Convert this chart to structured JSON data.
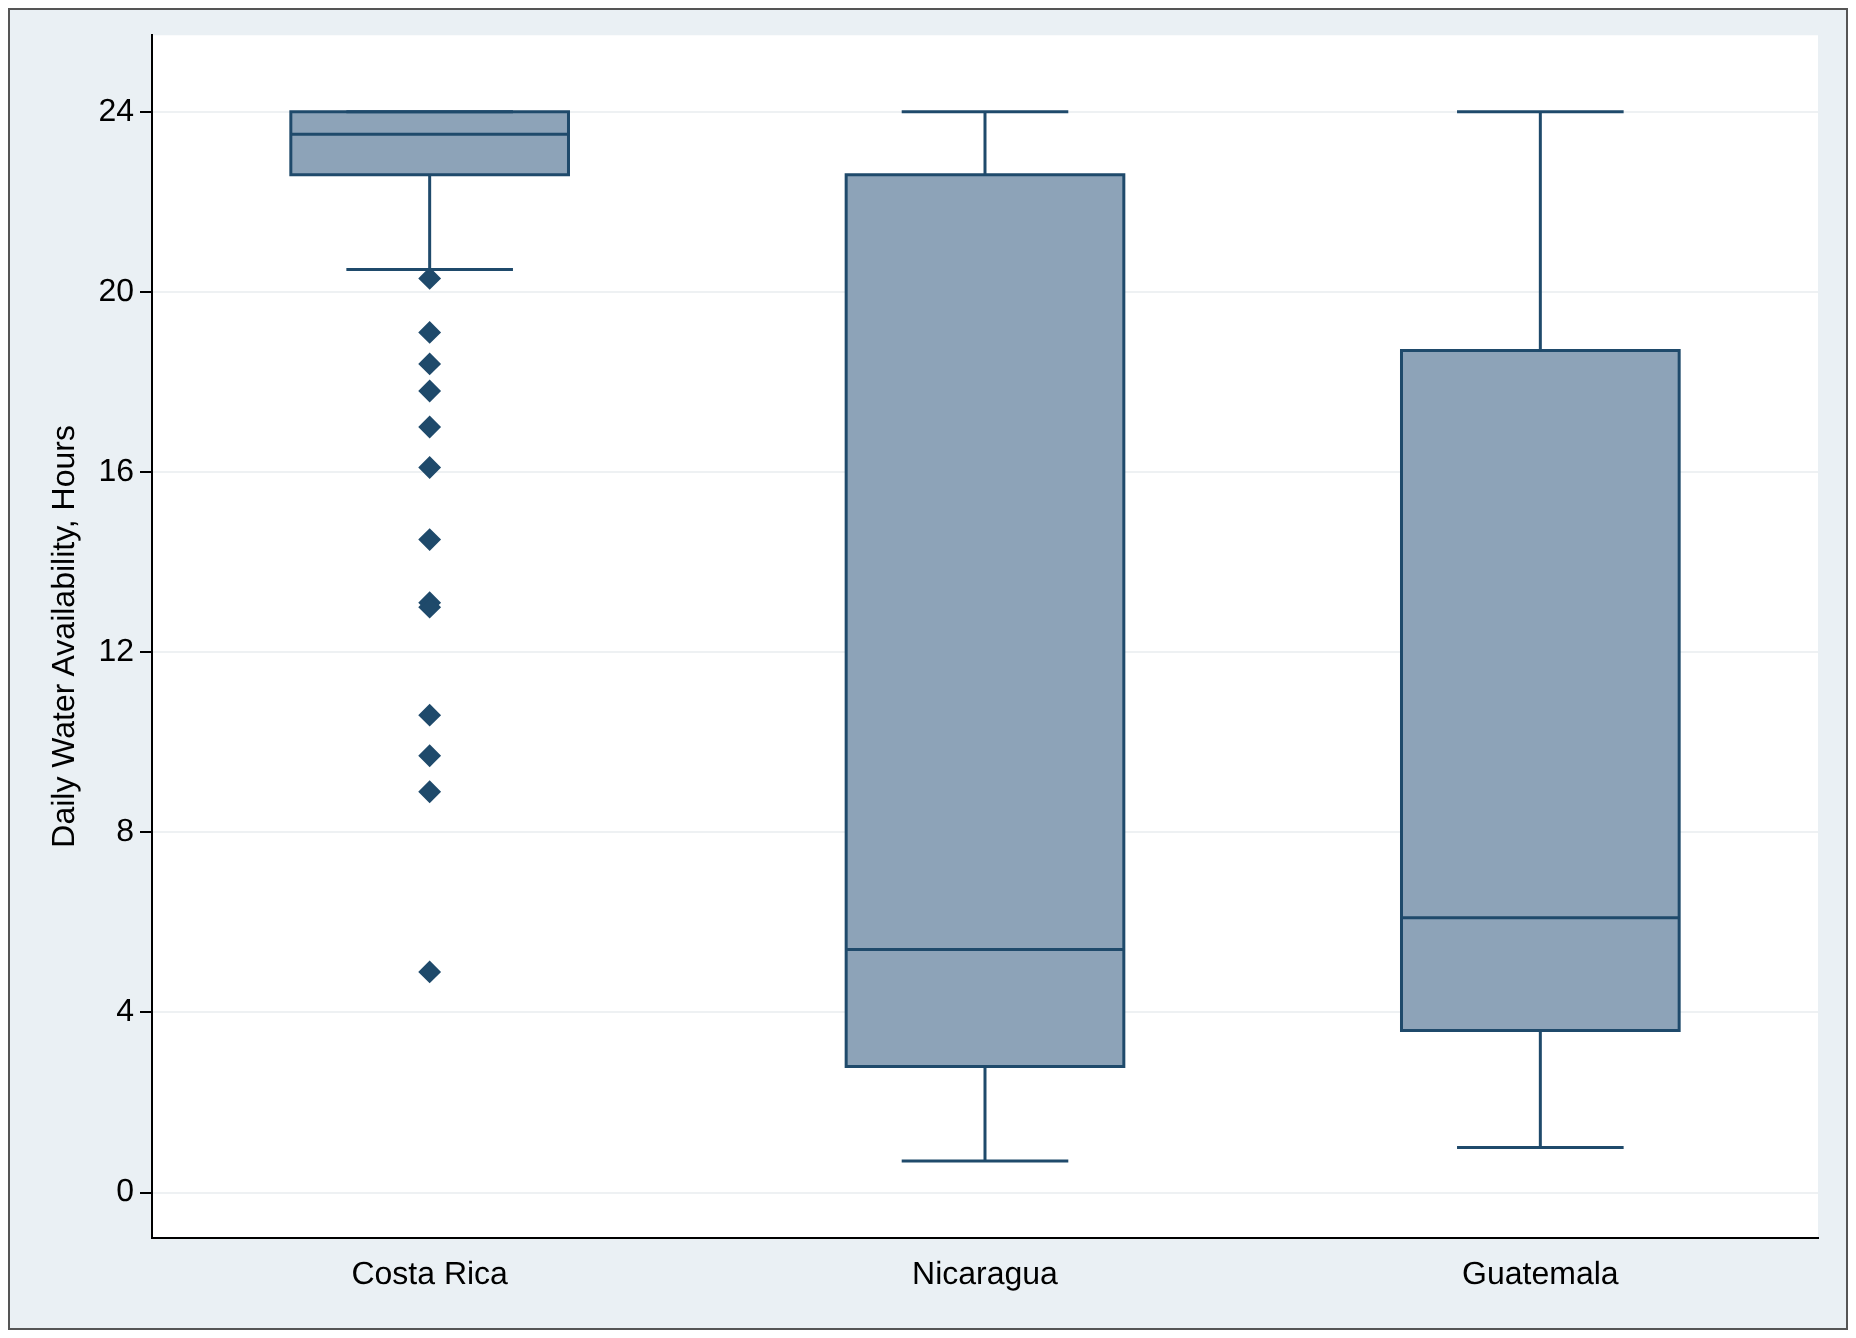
{
  "chart_data": {
    "type": "box",
    "ylabel": "Daily Water Availability, Hours",
    "categories": [
      "Costa Rica",
      "Nicaragua",
      "Guatemala"
    ],
    "boxes": [
      {
        "low": 20.5,
        "q1": 22.6,
        "median": 23.5,
        "q3": 24,
        "high": 24,
        "outliers": [
          20.3,
          19.1,
          18.4,
          17.8,
          17.0,
          16.1,
          14.5,
          13.1,
          13.0,
          10.6,
          9.7,
          8.9,
          4.9
        ]
      },
      {
        "low": 0.7,
        "q1": 2.8,
        "median": 5.4,
        "q3": 22.6,
        "high": 24
      },
      {
        "low": 1.0,
        "q1": 3.6,
        "median": 6.1,
        "q3": 18.7,
        "high": 24
      }
    ],
    "color": "#8da3b8",
    "ylim": [
      -1,
      25.7
    ],
    "yticks": [
      0,
      4,
      8,
      12,
      16,
      20,
      24
    ],
    "grid": "y",
    "marker": "diamond"
  }
}
